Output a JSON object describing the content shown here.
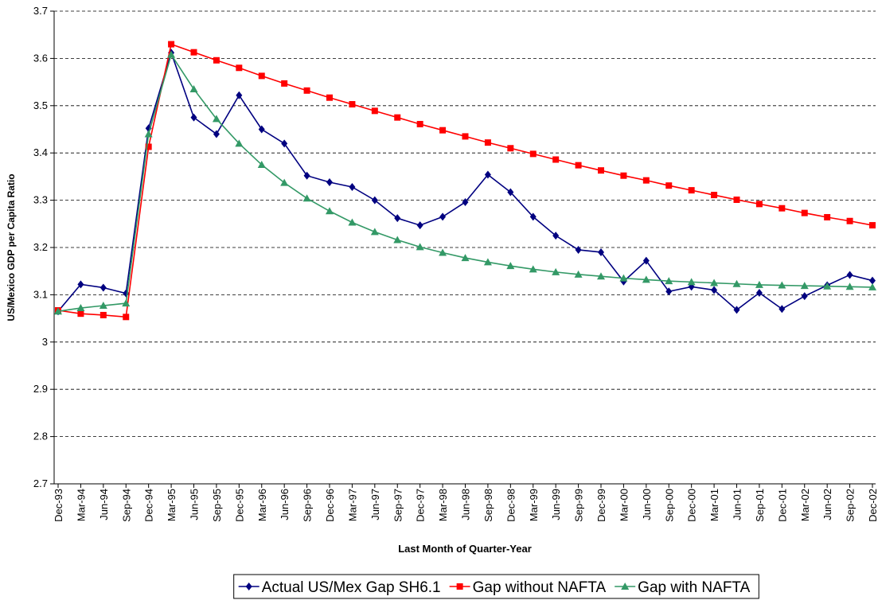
{
  "chart_data": {
    "type": "line",
    "y_label": "US/Mexico GDP per Capita Ratio",
    "x_label": "Last Month of Quarter-Year",
    "categories": [
      "Dec-93",
      "Mar-94",
      "Jun-94",
      "Sep-94",
      "Dec-94",
      "Mar-95",
      "Jun-95",
      "Sep-95",
      "Dec-95",
      "Mar-96",
      "Jun-96",
      "Sep-96",
      "Dec-96",
      "Mar-97",
      "Jun-97",
      "Sep-97",
      "Dec-97",
      "Mar-98",
      "Jun-98",
      "Sep-98",
      "Dec-98",
      "Mar-99",
      "Jun-99",
      "Sep-99",
      "Dec-99",
      "Mar-00",
      "Jun-00",
      "Sep-00",
      "Dec-00",
      "Mar-01",
      "Jun-01",
      "Sep-01",
      "Dec-01",
      "Mar-02",
      "Jun-02",
      "Sep-02",
      "Dec-02"
    ],
    "series": [
      {
        "name": "Actual US/Mex Gap SH6.1",
        "color": "#000080",
        "marker": "diamond",
        "values": [
          3.065,
          3.122,
          3.115,
          3.103,
          3.452,
          3.612,
          3.475,
          3.44,
          3.522,
          3.45,
          3.42,
          3.352,
          3.338,
          3.328,
          3.3,
          3.262,
          3.247,
          3.265,
          3.296,
          3.354,
          3.317,
          3.265,
          3.225,
          3.195,
          3.19,
          3.128,
          3.172,
          3.107,
          3.117,
          3.11,
          3.068,
          3.104,
          3.07,
          3.097,
          3.12,
          3.142,
          3.13
        ]
      },
      {
        "name": "Gap without NAFTA",
        "color": "#ff0000",
        "marker": "square",
        "values": [
          3.067,
          3.06,
          3.057,
          3.053,
          3.413,
          3.63,
          3.613,
          3.596,
          3.58,
          3.563,
          3.547,
          3.532,
          3.517,
          3.503,
          3.489,
          3.475,
          3.461,
          3.448,
          3.435,
          3.422,
          3.41,
          3.398,
          3.386,
          3.374,
          3.363,
          3.352,
          3.342,
          3.331,
          3.321,
          3.311,
          3.301,
          3.292,
          3.283,
          3.273,
          3.264,
          3.256,
          3.247
        ]
      },
      {
        "name": "Gap with NAFTA",
        "color": "#339966",
        "marker": "triangle",
        "values": [
          3.065,
          3.072,
          3.077,
          3.082,
          3.44,
          3.608,
          3.535,
          3.472,
          3.42,
          3.375,
          3.337,
          3.304,
          3.277,
          3.253,
          3.233,
          3.216,
          3.201,
          3.189,
          3.178,
          3.169,
          3.161,
          3.154,
          3.148,
          3.143,
          3.139,
          3.135,
          3.132,
          3.129,
          3.127,
          3.125,
          3.123,
          3.121,
          3.12,
          3.119,
          3.118,
          3.117,
          3.116
        ]
      }
    ],
    "ylim": [
      2.7,
      3.7
    ],
    "yticks": [
      2.7,
      2.8,
      2.9,
      3,
      3.1,
      3.2,
      3.3,
      3.4,
      3.5,
      3.6,
      3.7
    ],
    "grid": true,
    "legend": "bottom"
  }
}
